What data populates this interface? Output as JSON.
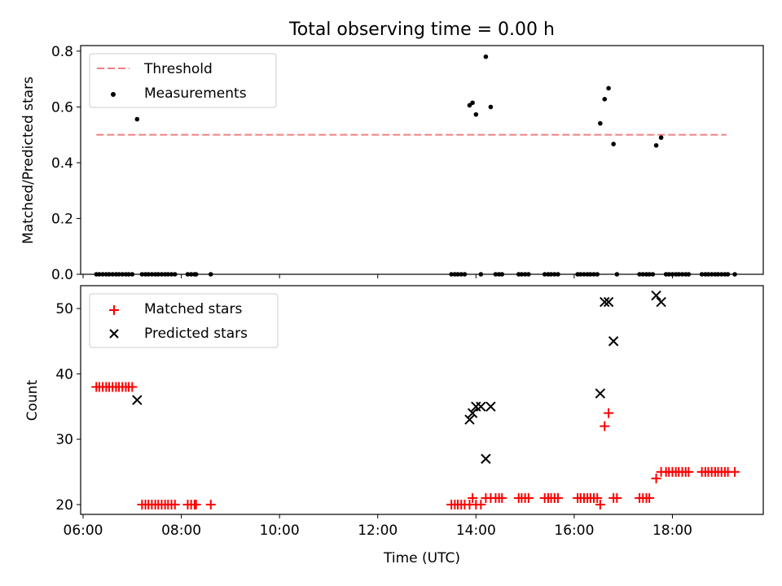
{
  "title": "Total observing time = 0.00 h",
  "xlabel": "Time (UTC)",
  "chart_data": [
    {
      "type": "scatter",
      "ylabel": "Matched/Predicted stars",
      "xlim": [
        5.95,
        19.85
      ],
      "ylim": [
        0,
        0.82
      ],
      "yticks": [
        0.0,
        0.2,
        0.4,
        0.6,
        0.8
      ],
      "ytick_labels": [
        "0.0",
        "0.2",
        "0.4",
        "0.6",
        "0.8"
      ],
      "legend_position": "top-left",
      "colors": {
        "threshold": "#f08080",
        "measurements": "#000000"
      },
      "threshold": {
        "name": "Threshold",
        "value": 0.5,
        "x": [
          6.27,
          19.1
        ]
      },
      "measurements": {
        "name": "Measurements",
        "x": [
          6.27,
          6.33,
          6.4,
          6.47,
          6.53,
          6.6,
          6.67,
          6.73,
          6.8,
          6.87,
          6.93,
          7.0,
          7.1,
          7.2,
          7.27,
          7.33,
          7.4,
          7.47,
          7.53,
          7.6,
          7.67,
          7.73,
          7.8,
          7.87,
          8.13,
          8.2,
          8.27,
          8.3,
          8.6,
          13.5,
          13.57,
          13.63,
          13.7,
          13.77,
          13.87,
          13.93,
          14.0,
          14.1,
          14.2,
          14.3,
          14.4,
          14.47,
          14.53,
          14.87,
          14.93,
          15.0,
          15.07,
          15.4,
          15.47,
          15.53,
          15.6,
          15.67,
          16.07,
          16.13,
          16.2,
          16.27,
          16.33,
          16.4,
          16.47,
          16.53,
          16.62,
          16.7,
          16.8,
          16.87,
          17.33,
          17.4,
          17.47,
          17.53,
          17.6,
          17.67,
          17.77,
          17.87,
          17.93,
          18.0,
          18.07,
          18.13,
          18.2,
          18.27,
          18.33,
          18.6,
          18.67,
          18.73,
          18.8,
          18.87,
          18.93,
          19.0,
          19.07,
          19.13,
          19.27
        ],
        "y": [
          0,
          0,
          0,
          0,
          0,
          0,
          0,
          0,
          0,
          0,
          0,
          0,
          0.556,
          0,
          0,
          0,
          0,
          0,
          0,
          0,
          0,
          0,
          0,
          0,
          0,
          0,
          0,
          0,
          0,
          0,
          0,
          0,
          0,
          0,
          0.606,
          0.615,
          0.573,
          0,
          0.78,
          0.6,
          0,
          0,
          0,
          0,
          0,
          0,
          0,
          0,
          0,
          0,
          0,
          0,
          0,
          0,
          0,
          0,
          0,
          0,
          0,
          0.541,
          0.628,
          0.667,
          0.467,
          0,
          0,
          0,
          0,
          0,
          0,
          0.462,
          0.49,
          0,
          0,
          0,
          0,
          0,
          0,
          0,
          0,
          0,
          0,
          0,
          0,
          0,
          0,
          0,
          0,
          0,
          0
        ]
      }
    },
    {
      "type": "scatter",
      "ylabel": "Count",
      "xlim": [
        5.95,
        19.85
      ],
      "ylim": [
        18.5,
        53.5
      ],
      "yticks": [
        20,
        30,
        40,
        50
      ],
      "ytick_labels": [
        "20",
        "30",
        "40",
        "50"
      ],
      "xticks": [
        6,
        8,
        10,
        12,
        14,
        16,
        18
      ],
      "xtick_labels": [
        "06:00",
        "08:00",
        "10:00",
        "12:00",
        "14:00",
        "16:00",
        "18:00"
      ],
      "legend_position": "top-left",
      "colors": {
        "matched": "#ff0000",
        "predicted": "#000000"
      },
      "series": [
        {
          "name": "Matched stars",
          "marker": "+",
          "x": [
            6.27,
            6.33,
            6.4,
            6.47,
            6.53,
            6.6,
            6.67,
            6.73,
            6.8,
            6.87,
            6.93,
            7.0,
            7.2,
            7.27,
            7.33,
            7.4,
            7.47,
            7.53,
            7.6,
            7.67,
            7.73,
            7.8,
            7.87,
            8.13,
            8.2,
            8.27,
            8.3,
            8.6,
            13.5,
            13.57,
            13.63,
            13.7,
            13.77,
            13.87,
            13.93,
            14.0,
            14.1,
            14.2,
            14.3,
            14.4,
            14.47,
            14.53,
            14.87,
            14.93,
            15.0,
            15.07,
            15.4,
            15.47,
            15.53,
            15.6,
            15.67,
            16.07,
            16.13,
            16.2,
            16.27,
            16.33,
            16.4,
            16.47,
            16.53,
            16.62,
            16.7,
            16.8,
            16.87,
            17.33,
            17.4,
            17.47,
            17.53,
            17.67,
            17.77,
            17.87,
            17.93,
            18.0,
            18.07,
            18.13,
            18.2,
            18.27,
            18.33,
            18.6,
            18.67,
            18.73,
            18.8,
            18.87,
            18.93,
            19.0,
            19.07,
            19.13,
            19.27
          ],
          "y": [
            38,
            38,
            38,
            38,
            38,
            38,
            38,
            38,
            38,
            38,
            38,
            38,
            20,
            20,
            20,
            20,
            20,
            20,
            20,
            20,
            20,
            20,
            20,
            20,
            20,
            20,
            20,
            20,
            20,
            20,
            20,
            20,
            20,
            20,
            21,
            20,
            20,
            21,
            21,
            21,
            21,
            21,
            21,
            21,
            21,
            21,
            21,
            21,
            21,
            21,
            21,
            21,
            21,
            21,
            21,
            21,
            21,
            21,
            20,
            32,
            34,
            21,
            21,
            21,
            21,
            21,
            21,
            24,
            25,
            25,
            25,
            25,
            25,
            25,
            25,
            25,
            25,
            25,
            25,
            25,
            25,
            25,
            25,
            25,
            25,
            25,
            25
          ]
        },
        {
          "name": "Predicted stars",
          "marker": "x",
          "x": [
            7.1,
            13.87,
            13.93,
            14.0,
            14.1,
            14.2,
            14.3,
            16.53,
            16.62,
            16.7,
            16.8,
            17.67,
            17.77
          ],
          "y": [
            36,
            33,
            34,
            35,
            35,
            27,
            35,
            37,
            51,
            51,
            45,
            52,
            51
          ]
        }
      ]
    }
  ]
}
